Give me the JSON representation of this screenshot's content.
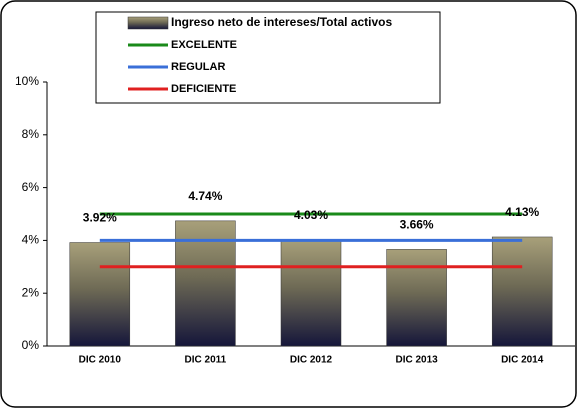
{
  "chart_data": {
    "type": "bar",
    "categories": [
      "DIC 2010",
      "DIC 2011",
      "DIC 2012",
      "DIC 2013",
      "DIC 2014"
    ],
    "series": [
      {
        "name": "Ingreso neto de intereses/Total activos",
        "type": "bar",
        "color": "#8b845f",
        "values": [
          3.92,
          4.74,
          4.03,
          3.66,
          4.13
        ],
        "value_labels": [
          "3.92%",
          "4.74%",
          "4.03%",
          "3.66%",
          "4.13%"
        ]
      },
      {
        "name": "EXCELENTE",
        "type": "line",
        "color": "#1a8a1a",
        "values": [
          5,
          5,
          5,
          5,
          5
        ]
      },
      {
        "name": "REGULAR",
        "type": "line",
        "color": "#3a6fd8",
        "values": [
          4,
          4,
          4,
          4,
          4
        ]
      },
      {
        "name": "DEFICIENTE",
        "type": "line",
        "color": "#e02020",
        "values": [
          3,
          3,
          3,
          3,
          3
        ]
      }
    ],
    "ylim": [
      0,
      10
    ],
    "yticks": [
      {
        "value": 0,
        "label": "0%"
      },
      {
        "value": 2,
        "label": "2%"
      },
      {
        "value": 4,
        "label": "4%"
      },
      {
        "value": 6,
        "label": "6%"
      },
      {
        "value": 8,
        "label": "8%"
      },
      {
        "value": 10,
        "label": "10%"
      }
    ]
  }
}
